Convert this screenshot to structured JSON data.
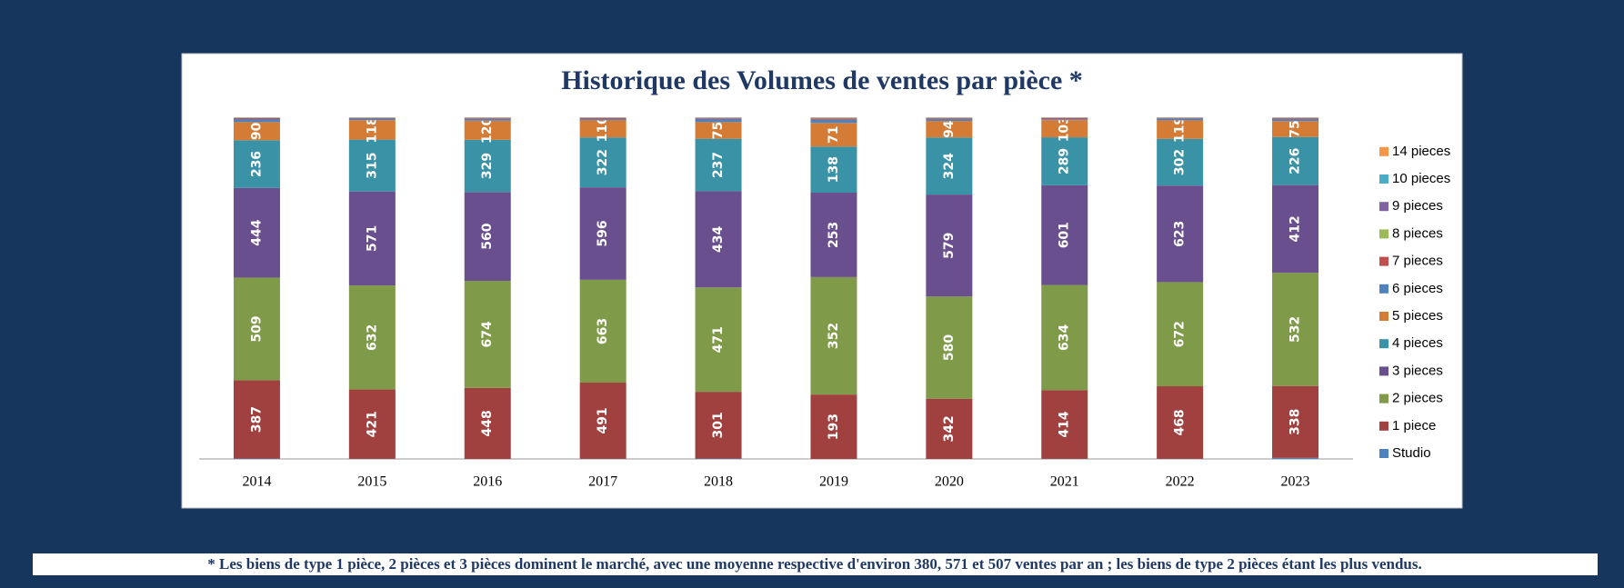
{
  "chart_data": {
    "type": "stacked-bar",
    "stacking": "percent",
    "title": "Historique des Volumes de ventes par pièce *",
    "categories": [
      "2014",
      "2015",
      "2016",
      "2017",
      "2018",
      "2019",
      "2020",
      "2021",
      "2022",
      "2023"
    ],
    "series": [
      {
        "name": "Studio",
        "color": "#4f81bd",
        "values": [
          2,
          1,
          0,
          1,
          2,
          0,
          0,
          1,
          1,
          5
        ]
      },
      {
        "name": "1 piece",
        "color": "#a0403f",
        "values": [
          387,
          421,
          448,
          491,
          301,
          193,
          342,
          414,
          468,
          338
        ]
      },
      {
        "name": "2 pieces",
        "color": "#7f9a48",
        "values": [
          509,
          632,
          674,
          663,
          471,
          352,
          580,
          634,
          672,
          532
        ]
      },
      {
        "name": "3 pieces",
        "color": "#6a4f8e",
        "values": [
          444,
          571,
          560,
          596,
          434,
          253,
          579,
          601,
          623,
          412
        ]
      },
      {
        "name": "4 pieces",
        "color": "#3a92a7",
        "values": [
          236,
          315,
          329,
          322,
          237,
          138,
          324,
          289,
          302,
          226
        ]
      },
      {
        "name": "5 pieces",
        "color": "#d47c35",
        "values": [
          90,
          118,
          120,
          110,
          75,
          71,
          94,
          103,
          119,
          75
        ]
      },
      {
        "name": "6 pieces",
        "color": "#4f81bd",
        "values": [
          15,
          10,
          12,
          8,
          15,
          10,
          12,
          6,
          12,
          10
        ]
      },
      {
        "name": "7 pieces",
        "color": "#c0504d",
        "values": [
          5,
          4,
          6,
          8,
          3,
          3,
          5,
          8,
          4,
          4
        ]
      },
      {
        "name": "8 pieces",
        "color": "#9bbb59",
        "values": [
          1,
          1,
          1,
          1,
          1,
          1,
          1,
          1,
          1,
          1
        ]
      },
      {
        "name": "9 pieces",
        "color": "#8064a2",
        "values": [
          1,
          1,
          1,
          1,
          1,
          1,
          1,
          1,
          1,
          1
        ]
      },
      {
        "name": "10 pieces",
        "color": "#4bacc6",
        "values": [
          1,
          1,
          1,
          1,
          1,
          1,
          1,
          1,
          1,
          1
        ]
      },
      {
        "name": "14 pieces",
        "color": "#f79646",
        "values": [
          1,
          1,
          1,
          1,
          1,
          1,
          1,
          1,
          1,
          1
        ]
      }
    ]
  },
  "footnote": "* Les biens de type 1 pièce, 2 pièces et 3 pièces dominent le marché, avec une moyenne respective d'environ 380, 571 et 507 ventes par an ; les biens de type 2 pièces étant les plus vendus."
}
